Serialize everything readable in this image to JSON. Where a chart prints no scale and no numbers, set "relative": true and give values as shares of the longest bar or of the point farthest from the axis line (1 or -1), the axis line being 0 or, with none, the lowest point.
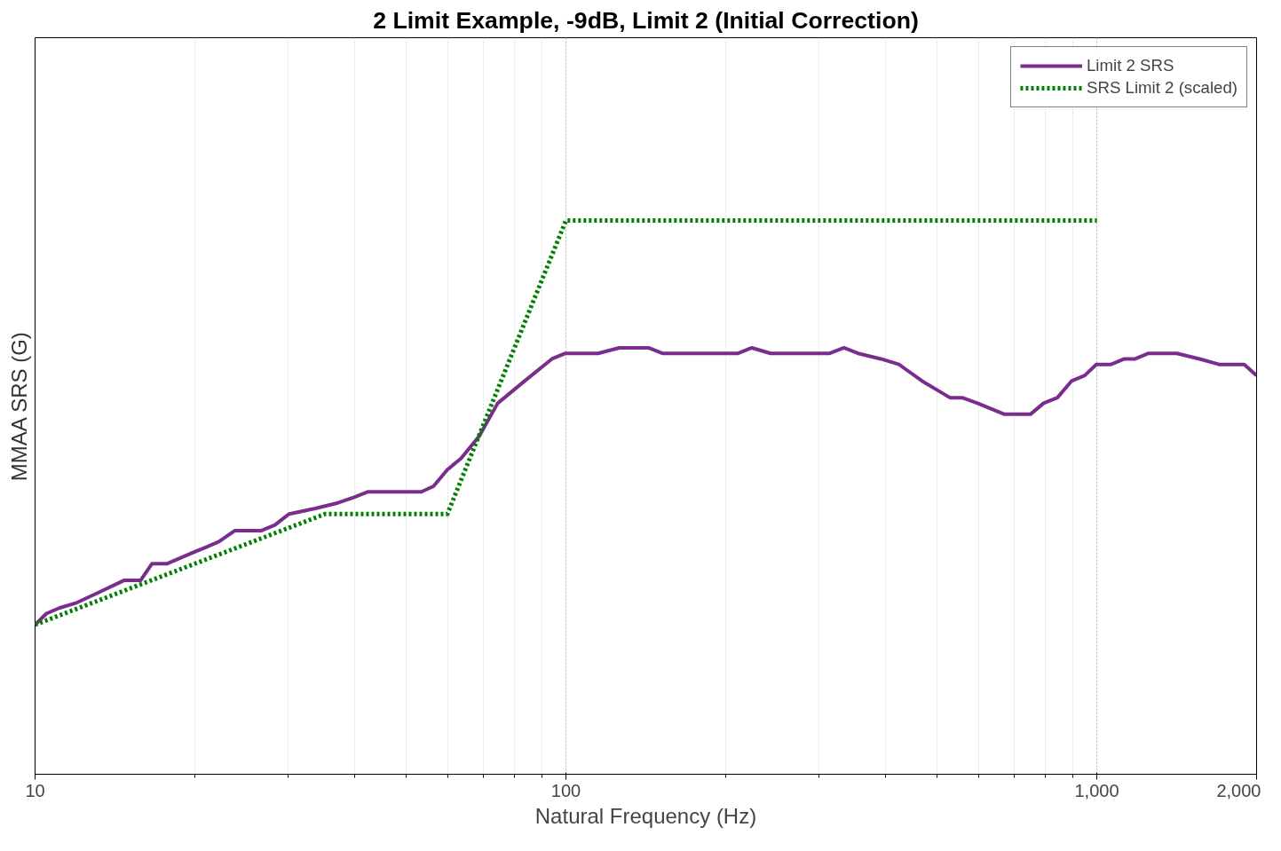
{
  "chart_data": {
    "type": "line",
    "title": "2 Limit Example, -9dB, Limit 2 (Initial Correction)",
    "xlabel": "Natural Frequency (Hz)",
    "ylabel": "MMAA SRS (G)",
    "log": "x",
    "relative": true,
    "xlim": [
      10,
      2000
    ],
    "xticks": [
      10,
      100,
      {
        "value": 1000,
        "label": "1,000"
      },
      {
        "value": 2000,
        "label": "2,000"
      }
    ],
    "grid": "x",
    "legend": "top right",
    "marker": "none",
    "series": [
      {
        "name": "Limit 2 SRS",
        "color": "#7b2d8e",
        "line_style": "solid",
        "x": [
          10,
          10.5,
          11.1,
          12.0,
          13.3,
          14.7,
          15.8,
          16.6,
          17.7,
          19.8,
          21.0,
          22.2,
          23.8,
          25.5,
          26.7,
          28.3,
          30.1,
          33.7,
          37.2,
          39.9,
          42.4,
          47.5,
          50.0,
          53.4,
          56.3,
          59.8,
          63.4,
          68.6,
          74.4,
          83.6,
          94.1,
          99.8,
          106,
          115,
          126,
          135,
          143,
          152,
          161,
          169,
          178,
          188,
          200,
          211,
          224,
          243,
          263,
          279,
          296,
          314,
          334,
          355,
          392,
          424,
          469,
          508,
          529,
          558,
          596,
          632,
          670,
          705,
          750,
          794,
          843,
          896,
          949,
          998,
          1064,
          1127,
          1181,
          1252,
          1334,
          1415,
          1562,
          1700,
          1800,
          1896,
          2000
        ],
        "values": [
          0.27,
          0.29,
          0.3,
          0.31,
          0.33,
          0.35,
          0.35,
          0.38,
          0.38,
          0.4,
          0.41,
          0.42,
          0.44,
          0.44,
          0.44,
          0.45,
          0.47,
          0.48,
          0.49,
          0.5,
          0.51,
          0.51,
          0.51,
          0.51,
          0.52,
          0.55,
          0.57,
          0.61,
          0.67,
          0.71,
          0.75,
          0.76,
          0.76,
          0.76,
          0.77,
          0.77,
          0.77,
          0.76,
          0.76,
          0.76,
          0.76,
          0.76,
          0.76,
          0.76,
          0.77,
          0.76,
          0.76,
          0.76,
          0.76,
          0.76,
          0.77,
          0.76,
          0.75,
          0.74,
          0.71,
          0.69,
          0.68,
          0.68,
          0.67,
          0.66,
          0.65,
          0.65,
          0.65,
          0.67,
          0.68,
          0.71,
          0.72,
          0.74,
          0.74,
          0.75,
          0.75,
          0.76,
          0.76,
          0.76,
          0.75,
          0.74,
          0.74,
          0.74,
          0.72
        ]
      },
      {
        "name": "SRS Limit 2 (scaled)",
        "color": "#008000",
        "line_style": "dotted",
        "x": [
          10,
          35.2,
          59.8,
          100,
          1000
        ],
        "values": [
          0.27,
          0.47,
          0.47,
          1.0,
          1.0
        ]
      }
    ]
  }
}
